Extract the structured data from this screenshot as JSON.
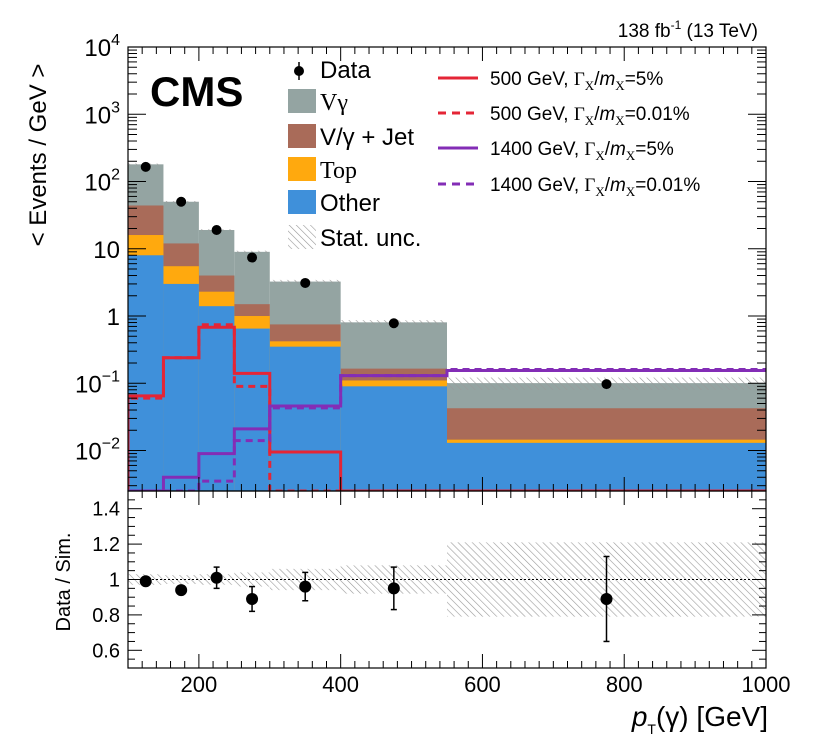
{
  "chart_data": {
    "type": "bar",
    "title": "",
    "lumi_label": "138 fb",
    "lumi_exp": "-1",
    "lumi_energy": " (13 TeV)",
    "experiment": "CMS",
    "xlabel_p": "p",
    "xlabel_sub": "T",
    "xlabel_rest": "(γ) [GeV]",
    "ylabel": "< Events / GeV >",
    "ratio_ylabel": "Data / Sim.",
    "xlim": [
      100,
      1000
    ],
    "ylim_log": [
      0.0025,
      10000
    ],
    "ratio_ylim": [
      0.5,
      1.5
    ],
    "x_ticks": [
      200,
      400,
      600,
      800,
      1000
    ],
    "x_tick_labels": [
      "200",
      "400",
      "600",
      "800",
      "1000"
    ],
    "y_tick_labels": [
      {
        "v": 10000,
        "base": "10",
        "exp": "4"
      },
      {
        "v": 1000,
        "base": "10",
        "exp": "3"
      },
      {
        "v": 100,
        "base": "10",
        "exp": "2"
      },
      {
        "v": 10,
        "base": "10",
        "exp": ""
      },
      {
        "v": 1,
        "base": "1",
        "exp": ""
      },
      {
        "v": 0.1,
        "base": "10",
        "exp": "−1"
      },
      {
        "v": 0.01,
        "base": "10",
        "exp": "−2"
      }
    ],
    "ratio_ticks": [
      0.6,
      0.8,
      1.0,
      1.2,
      1.4
    ],
    "ratio_tick_labels": [
      "0.6",
      "0.8",
      "1",
      "1.2",
      "1.4"
    ],
    "bin_edges": [
      100,
      150,
      200,
      250,
      300,
      400,
      550,
      1000
    ],
    "bin_centers": [
      125,
      175,
      225,
      275,
      350,
      475,
      775
    ],
    "stack": [
      {
        "name": "Other",
        "color": "#3f90da",
        "values": [
          8,
          3,
          1.4,
          0.65,
          0.35,
          0.09,
          0.013
        ]
      },
      {
        "name": "Top",
        "color": "#ffa90e",
        "values": [
          8,
          2.5,
          0.9,
          0.35,
          0.07,
          0.02,
          0.0015
        ]
      },
      {
        "name": "V/γ + Jet",
        "color": "#a96b59",
        "values": [
          28,
          6.5,
          1.7,
          0.5,
          0.33,
          0.055,
          0.028
        ]
      },
      {
        "name": "Vγ",
        "color": "#94a4a2",
        "values": [
          136,
          38,
          15,
          7.5,
          2.5,
          0.64,
          0.058
        ]
      }
    ],
    "data": {
      "name": "Data",
      "values": [
        165,
        50,
        19,
        7.4,
        3.1,
        0.78,
        0.097
      ]
    },
    "signals": [
      {
        "name": "500 GeV, Γ",
        "mass": "500 GeV, ",
        "width": "5%",
        "color": "#e42536",
        "dashed": false,
        "values": [
          0.065,
          0.24,
          0.68,
          0.14,
          0.0095,
          0.0025,
          0.0025
        ]
      },
      {
        "name": "500 GeV, Γ",
        "mass": "500 GeV, ",
        "width": "0.01%",
        "color": "#e42536",
        "dashed": true,
        "values": [
          0.06,
          0.24,
          0.74,
          0.09,
          0.0025,
          0.0025,
          0.0025
        ]
      },
      {
        "name": "1400 GeV, Γ",
        "mass": "1400 GeV, ",
        "width": "5%",
        "color": "#832db6",
        "dashed": false,
        "values": [
          0.0025,
          0.004,
          0.009,
          0.021,
          0.046,
          0.13,
          0.155
        ]
      },
      {
        "name": "1400 GeV, Γ",
        "mass": "1400 GeV, ",
        "width": "0.01%",
        "color": "#832db6",
        "dashed": true,
        "values": [
          0.0025,
          0.0025,
          0.0035,
          0.014,
          0.043,
          0.13,
          0.16
        ]
      }
    ],
    "ratio": {
      "values": [
        0.99,
        0.94,
        1.01,
        0.89,
        0.96,
        0.95,
        0.89
      ],
      "err_up": [
        0.02,
        0.02,
        0.06,
        0.07,
        0.08,
        0.12,
        0.24
      ],
      "err_dn": [
        0.02,
        0.02,
        0.06,
        0.07,
        0.08,
        0.12,
        0.24
      ],
      "unc_band": [
        0.03,
        0.025,
        0.03,
        0.04,
        0.06,
        0.08,
        0.21
      ]
    },
    "legend_left": [
      "Data",
      "Vγ",
      "V/γ + Jet",
      "Top",
      "Other",
      "Stat. unc."
    ],
    "legend_sym_gamma": "Γ",
    "legend_sub_x": "X",
    "legend_m": "m",
    "legend_slash": "/",
    "legend_eq": "="
  }
}
